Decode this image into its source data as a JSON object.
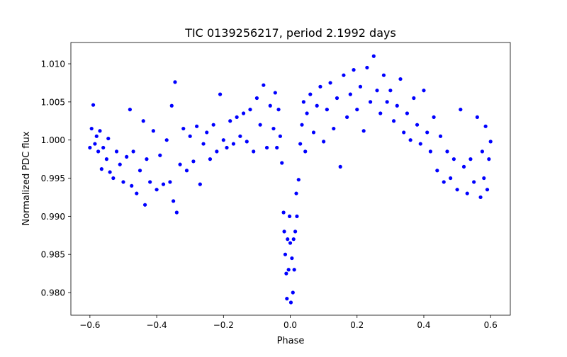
{
  "chart_data": {
    "type": "scatter",
    "title": "TIC 0139256217, period 2.1992 days",
    "xlabel": "Phase",
    "ylabel": "Normalized PDC flux",
    "xlim": [
      -0.657,
      0.659
    ],
    "ylim": [
      0.97703,
      1.01279
    ],
    "xticks": [
      -0.6,
      -0.4,
      -0.2,
      0.0,
      0.2,
      0.4,
      0.6
    ],
    "xtick_labels": [
      "−0.6",
      "−0.4",
      "−0.2",
      "0.0",
      "0.2",
      "0.4",
      "0.6"
    ],
    "yticks": [
      0.98,
      0.985,
      0.99,
      0.995,
      1.0,
      1.005,
      1.01
    ],
    "ytick_labels": [
      "0.980",
      "0.985",
      "0.990",
      "0.995",
      "1.000",
      "1.005",
      "1.010"
    ],
    "grid": false,
    "marker_color": "#0000ff",
    "points": [
      [
        -0.6,
        0.999
      ],
      [
        -0.595,
        1.0015
      ],
      [
        -0.59,
        1.0046
      ],
      [
        -0.585,
        0.9995
      ],
      [
        -0.58,
        1.0005
      ],
      [
        -0.575,
        0.9985
      ],
      [
        -0.57,
        1.0012
      ],
      [
        -0.565,
        0.9962
      ],
      [
        -0.56,
        0.999
      ],
      [
        -0.55,
        0.9975
      ],
      [
        -0.545,
        1.0002
      ],
      [
        -0.54,
        0.9958
      ],
      [
        -0.53,
        0.995
      ],
      [
        -0.52,
        0.9985
      ],
      [
        -0.51,
        0.9968
      ],
      [
        -0.5,
        0.9945
      ],
      [
        -0.49,
        0.9978
      ],
      [
        -0.48,
        1.004
      ],
      [
        -0.475,
        0.994
      ],
      [
        -0.47,
        0.9985
      ],
      [
        -0.46,
        0.993
      ],
      [
        -0.45,
        0.996
      ],
      [
        -0.44,
        1.0025
      ],
      [
        -0.435,
        0.9915
      ],
      [
        -0.43,
        0.9975
      ],
      [
        -0.42,
        0.9945
      ],
      [
        -0.41,
        1.0012
      ],
      [
        -0.4,
        0.9935
      ],
      [
        -0.39,
        0.998
      ],
      [
        -0.38,
        0.9942
      ],
      [
        -0.37,
        1.0
      ],
      [
        -0.36,
        0.9945
      ],
      [
        -0.355,
        1.0045
      ],
      [
        -0.35,
        0.992
      ],
      [
        -0.345,
        1.0076
      ],
      [
        -0.34,
        0.9905
      ],
      [
        -0.33,
        0.9968
      ],
      [
        -0.32,
        1.0015
      ],
      [
        -0.31,
        0.996
      ],
      [
        -0.3,
        1.0005
      ],
      [
        -0.29,
        0.9972
      ],
      [
        -0.28,
        1.0018
      ],
      [
        -0.27,
        0.9942
      ],
      [
        -0.26,
        0.9995
      ],
      [
        -0.25,
        1.001
      ],
      [
        -0.24,
        0.9975
      ],
      [
        -0.23,
        1.002
      ],
      [
        -0.22,
        0.9985
      ],
      [
        -0.21,
        1.006
      ],
      [
        -0.2,
        1.0
      ],
      [
        -0.19,
        0.999
      ],
      [
        -0.18,
        1.0025
      ],
      [
        -0.17,
        0.9995
      ],
      [
        -0.16,
        1.003
      ],
      [
        -0.15,
        1.0005
      ],
      [
        -0.14,
        1.0035
      ],
      [
        -0.13,
        0.9998
      ],
      [
        -0.12,
        1.004
      ],
      [
        -0.11,
        0.9985
      ],
      [
        -0.1,
        1.0055
      ],
      [
        -0.09,
        1.002
      ],
      [
        -0.08,
        1.0072
      ],
      [
        -0.07,
        0.999
      ],
      [
        -0.06,
        1.0045
      ],
      [
        -0.05,
        1.0015
      ],
      [
        -0.045,
        1.0062
      ],
      [
        -0.04,
        0.999
      ],
      [
        -0.035,
        1.004
      ],
      [
        -0.03,
        1.0005
      ],
      [
        -0.025,
        0.997
      ],
      [
        -0.02,
        0.9905
      ],
      [
        -0.018,
        0.988
      ],
      [
        -0.015,
        0.985
      ],
      [
        -0.012,
        0.9825
      ],
      [
        -0.01,
        0.9792
      ],
      [
        -0.008,
        0.987
      ],
      [
        -0.005,
        0.983
      ],
      [
        -0.002,
        0.99
      ],
      [
        0.0,
        0.9865
      ],
      [
        0.002,
        0.9787
      ],
      [
        0.005,
        0.9845
      ],
      [
        0.008,
        0.98
      ],
      [
        0.01,
        0.987
      ],
      [
        0.012,
        0.983
      ],
      [
        0.015,
        0.988
      ],
      [
        0.018,
        0.993
      ],
      [
        0.02,
        0.99
      ],
      [
        0.025,
        0.9948
      ],
      [
        0.03,
        0.9995
      ],
      [
        0.035,
        1.002
      ],
      [
        0.04,
        1.005
      ],
      [
        0.045,
        0.9985
      ],
      [
        0.05,
        1.0035
      ],
      [
        0.06,
        1.006
      ],
      [
        0.07,
        1.001
      ],
      [
        0.08,
        1.0045
      ],
      [
        0.09,
        1.007
      ],
      [
        0.1,
        0.9998
      ],
      [
        0.11,
        1.004
      ],
      [
        0.12,
        1.0075
      ],
      [
        0.13,
        1.0015
      ],
      [
        0.14,
        1.0055
      ],
      [
        0.15,
        0.9965
      ],
      [
        0.16,
        1.0085
      ],
      [
        0.17,
        1.003
      ],
      [
        0.18,
        1.006
      ],
      [
        0.19,
        1.0092
      ],
      [
        0.2,
        1.004
      ],
      [
        0.21,
        1.007
      ],
      [
        0.22,
        1.0012
      ],
      [
        0.23,
        1.0095
      ],
      [
        0.24,
        1.005
      ],
      [
        0.25,
        1.011
      ],
      [
        0.26,
        1.0065
      ],
      [
        0.27,
        1.0035
      ],
      [
        0.28,
        1.0085
      ],
      [
        0.29,
        1.005
      ],
      [
        0.3,
        1.0065
      ],
      [
        0.31,
        1.0025
      ],
      [
        0.32,
        1.0045
      ],
      [
        0.33,
        1.008
      ],
      [
        0.34,
        1.001
      ],
      [
        0.35,
        1.0035
      ],
      [
        0.36,
        1.0
      ],
      [
        0.37,
        1.0055
      ],
      [
        0.38,
        1.002
      ],
      [
        0.39,
        0.9995
      ],
      [
        0.4,
        1.0065
      ],
      [
        0.41,
        1.001
      ],
      [
        0.42,
        0.9985
      ],
      [
        0.43,
        1.003
      ],
      [
        0.44,
        0.996
      ],
      [
        0.45,
        1.0005
      ],
      [
        0.46,
        0.9945
      ],
      [
        0.47,
        0.9985
      ],
      [
        0.48,
        0.995
      ],
      [
        0.49,
        0.9975
      ],
      [
        0.5,
        0.9935
      ],
      [
        0.51,
        1.004
      ],
      [
        0.52,
        0.9965
      ],
      [
        0.53,
        0.993
      ],
      [
        0.54,
        0.9975
      ],
      [
        0.55,
        0.9945
      ],
      [
        0.56,
        1.003
      ],
      [
        0.57,
        0.9925
      ],
      [
        0.575,
        0.9985
      ],
      [
        0.58,
        0.995
      ],
      [
        0.585,
        1.0018
      ],
      [
        0.59,
        0.9935
      ],
      [
        0.595,
        0.9975
      ],
      [
        0.6,
        0.9998
      ]
    ]
  }
}
